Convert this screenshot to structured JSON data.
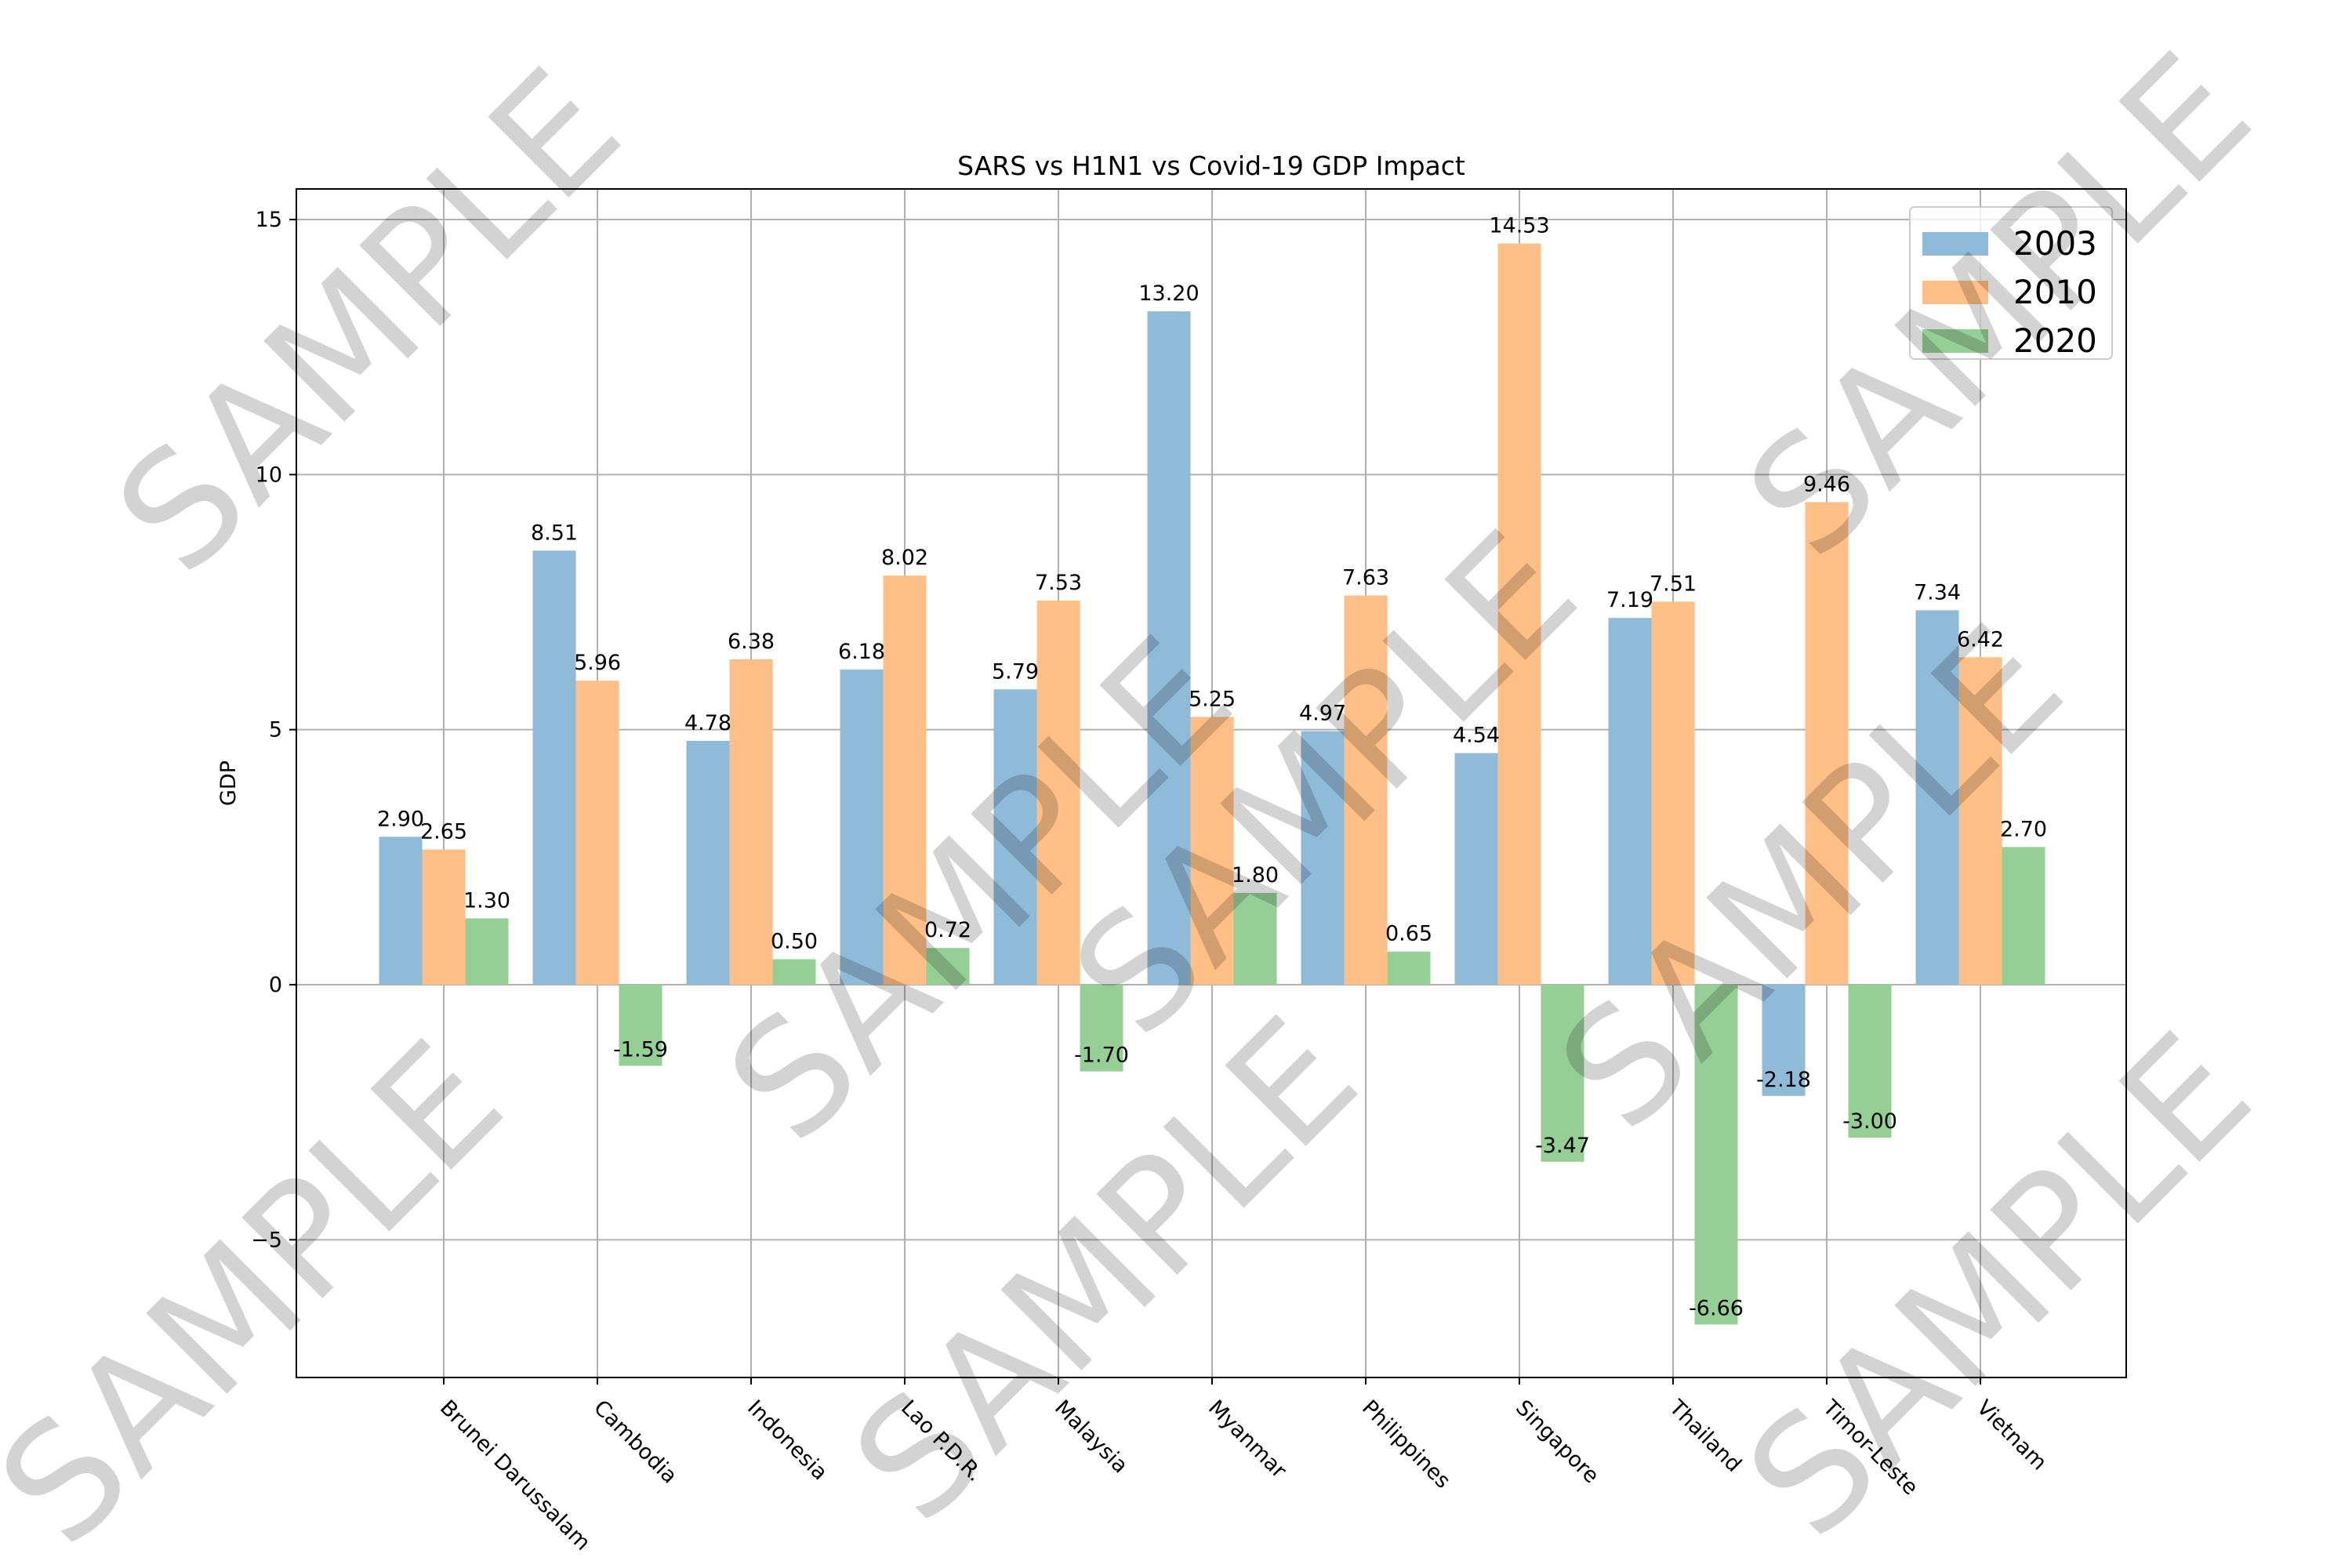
{
  "chart_data": {
    "type": "bar",
    "title": "SARS vs H1N1 vs Covid-19 GDP Impact",
    "xlabel": "",
    "ylabel": "GDP",
    "ylim": [
      -7.7,
      15.6
    ],
    "yticks": [
      -5,
      0,
      5,
      10,
      15
    ],
    "ytick_labels": [
      "−5",
      "0",
      "5",
      "10",
      "15"
    ],
    "grid": true,
    "legend_position": "top-right",
    "categories": [
      "Brunei Darussalam",
      "Cambodia",
      "Indonesia",
      "Lao P.D.R.",
      "Malaysia",
      "Myanmar",
      "Philippines",
      "Singapore",
      "Thailand",
      "Timor-Leste",
      "Vietnam"
    ],
    "series": [
      {
        "name": "2003",
        "color": "#8fbbd9",
        "values": [
          2.9,
          8.51,
          4.78,
          6.18,
          5.79,
          13.2,
          4.97,
          4.54,
          7.19,
          -2.18,
          7.34
        ]
      },
      {
        "name": "2010",
        "color": "#ffbf86",
        "values": [
          2.65,
          5.96,
          6.38,
          8.02,
          7.53,
          5.25,
          7.63,
          14.53,
          7.51,
          9.46,
          6.42
        ]
      },
      {
        "name": "2020",
        "color": "#95cf95",
        "values": [
          1.3,
          -1.59,
          0.5,
          0.72,
          -1.7,
          1.8,
          0.65,
          -3.47,
          -6.66,
          -3.0,
          2.7
        ]
      }
    ]
  },
  "watermark": "SAMPLE"
}
